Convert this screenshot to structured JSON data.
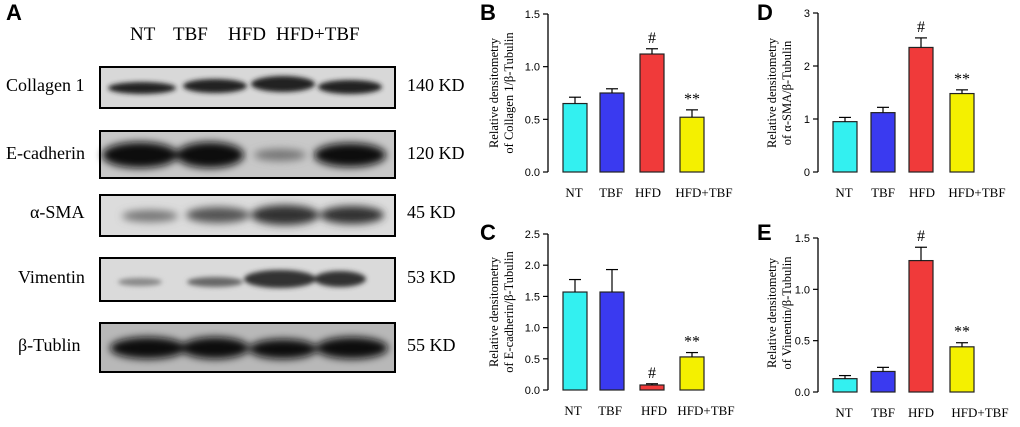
{
  "western_blot": {
    "panel_label": "A",
    "lanes": [
      "NT",
      "TBF",
      "HFD",
      "HFD+TBF"
    ],
    "rows": [
      {
        "protein": "Collagen 1",
        "size": "140 KD"
      },
      {
        "protein": "E-cadherin",
        "size": "120 KD"
      },
      {
        "protein": "α-SMA",
        "size": "45 KD"
      },
      {
        "protein": "Vimentin",
        "size": "53 KD"
      },
      {
        "protein": "β-Tublin",
        "size": "55 KD"
      }
    ]
  },
  "colors": {
    "NT": "#33f0f0",
    "TBF": "#3a3af0",
    "HFD": "#f03a3a",
    "HFD+TBF": "#f4f000"
  },
  "chart_data": [
    {
      "panel": "B",
      "type": "bar",
      "categories": [
        "NT",
        "TBF",
        "HFD",
        "HFD+TBF"
      ],
      "values": [
        0.65,
        0.75,
        1.12,
        0.52
      ],
      "errors": [
        0.06,
        0.04,
        0.05,
        0.07
      ],
      "annotations": [
        "",
        "",
        "#",
        "**"
      ],
      "ylabel_lines": [
        "Relative densitometry",
        "of Collagen 1/β-Tubulin"
      ],
      "ylim": [
        0,
        1.5
      ],
      "yticks": [
        "0.0",
        "0.5",
        "1.0",
        "1.5"
      ],
      "ytick_values": [
        0,
        0.5,
        1.0,
        1.5
      ]
    },
    {
      "panel": "C",
      "type": "bar",
      "categories": [
        "NT",
        "TBF",
        "HFD",
        "HFD+TBF"
      ],
      "values": [
        1.57,
        1.57,
        0.08,
        0.53
      ],
      "errors": [
        0.2,
        0.36,
        0.02,
        0.07
      ],
      "annotations": [
        "",
        "",
        "#",
        "**"
      ],
      "ylabel_lines": [
        "Relative densitometry",
        "of E-cadherin/β-Tubulin"
      ],
      "ylim": [
        0,
        2.5
      ],
      "yticks": [
        "0.0",
        "0.5",
        "1.0",
        "1.5",
        "2.0",
        "2.5"
      ],
      "ytick_values": [
        0,
        0.5,
        1.0,
        1.5,
        2.0,
        2.5
      ]
    },
    {
      "panel": "D",
      "type": "bar",
      "categories": [
        "NT",
        "TBF",
        "HFD",
        "HFD+TBF"
      ],
      "values": [
        0.95,
        1.12,
        2.35,
        1.48
      ],
      "errors": [
        0.08,
        0.1,
        0.18,
        0.07
      ],
      "annotations": [
        "",
        "",
        "#",
        "**"
      ],
      "ylabel_lines": [
        "Relative densitometry",
        "of α-SMA/β-Tubulin"
      ],
      "ylim": [
        0,
        3
      ],
      "yticks": [
        "0",
        "1",
        "2",
        "3"
      ],
      "ytick_values": [
        0,
        1,
        2,
        3
      ]
    },
    {
      "panel": "E",
      "type": "bar",
      "categories": [
        "NT",
        "TBF",
        "HFD",
        "HFD+TBF"
      ],
      "values": [
        0.13,
        0.2,
        1.28,
        0.44
      ],
      "errors": [
        0.03,
        0.04,
        0.13,
        0.04
      ],
      "annotations": [
        "",
        "",
        "#",
        "**"
      ],
      "ylabel_lines": [
        "Relative densitometry",
        "of Vimentin/β-Tubulin"
      ],
      "ylim": [
        0,
        1.5
      ],
      "yticks": [
        "0.0",
        "0.5",
        "1.0",
        "1.5"
      ],
      "ytick_values": [
        0,
        0.5,
        1.0,
        1.5
      ]
    }
  ]
}
